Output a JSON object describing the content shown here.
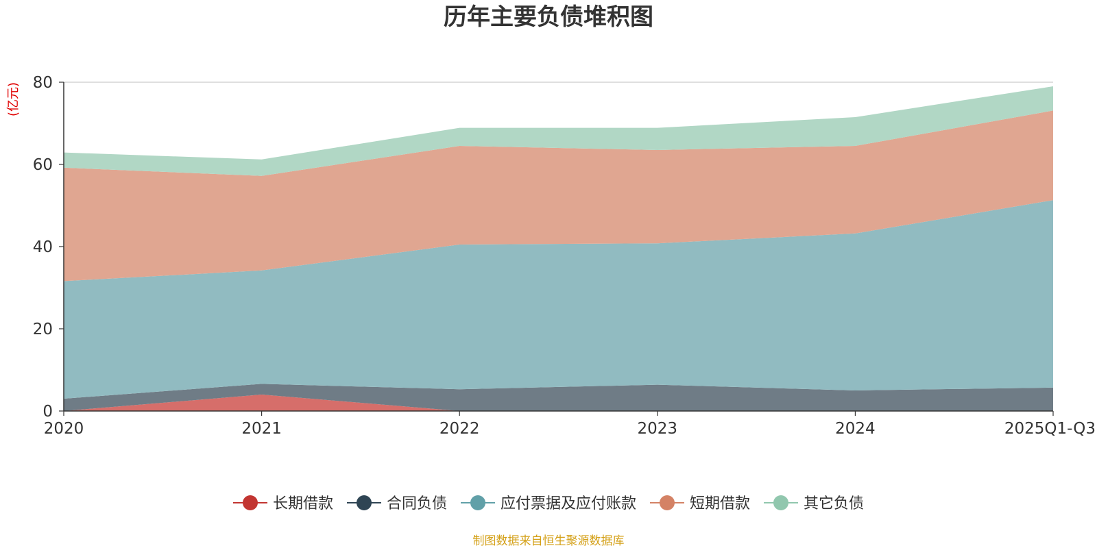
{
  "chart_data": {
    "type": "area",
    "stacked": true,
    "title": "历年主要负债堆积图",
    "y_unit": "(亿元)",
    "categories": [
      "2020",
      "2021",
      "2022",
      "2023",
      "2024",
      "2025Q1-Q3"
    ],
    "yticks": [
      "0",
      "20",
      "40",
      "60",
      "80"
    ],
    "ylim": [
      0,
      80
    ],
    "grid": true,
    "legend_position": "bottom",
    "series": [
      {
        "name": "长期借款",
        "values": [
          0.0,
          4.0,
          0.0,
          0.0,
          0.0,
          0.0
        ],
        "color": "#c23531",
        "fill": "#d66e6a"
      },
      {
        "name": "合同负债",
        "values": [
          3.0,
          2.6,
          5.3,
          6.4,
          5.0,
          5.7
        ],
        "color": "#2f4554",
        "fill": "#6f7c86"
      },
      {
        "name": "应付票据及应付账款",
        "values": [
          28.6,
          27.6,
          35.2,
          34.4,
          38.2,
          45.6
        ],
        "color": "#61a0a8",
        "fill": "#91bbc1"
      },
      {
        "name": "短期借款",
        "values": [
          27.6,
          23.0,
          24.0,
          22.7,
          21.3,
          21.8
        ],
        "color": "#d48265",
        "fill": "#e0a691"
      },
      {
        "name": "其它负债",
        "values": [
          3.7,
          4.0,
          4.4,
          5.4,
          7.0,
          5.9
        ],
        "color": "#91c7ae",
        "fill": "#b1d7c5"
      }
    ]
  },
  "footer": {
    "source_text": "制图数据来自恒生聚源数据库",
    "source_color": "#d4a017"
  },
  "unit_color": "#e00000"
}
